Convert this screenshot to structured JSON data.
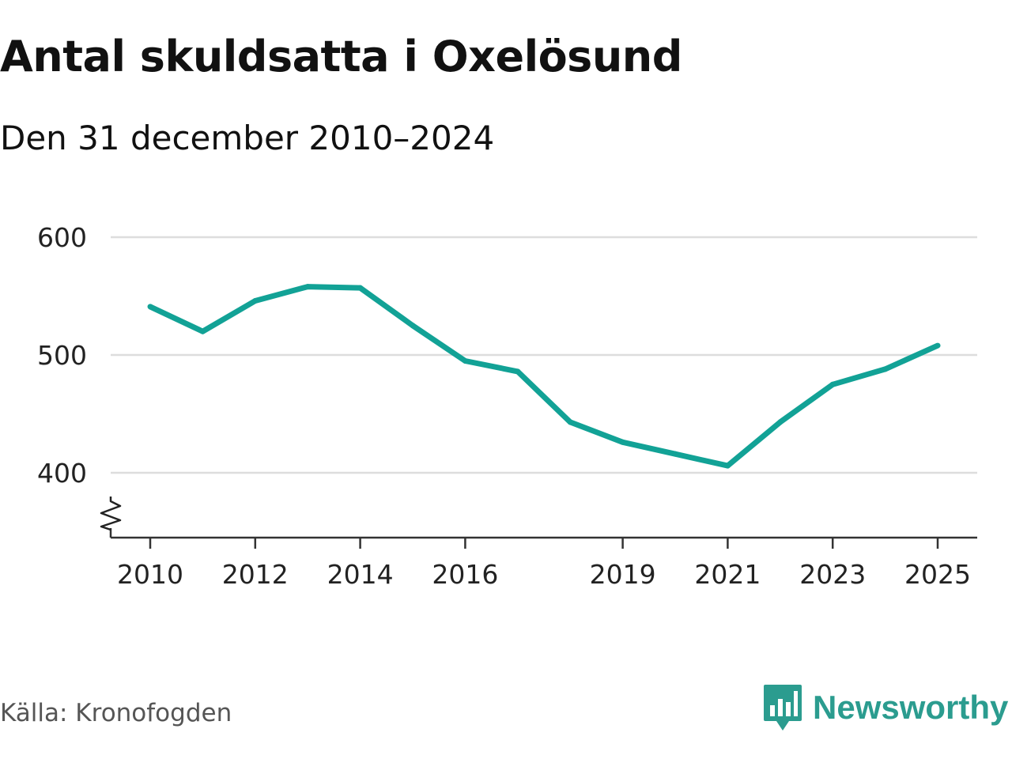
{
  "title": "Antal skuldsatta i Oxelösund",
  "subtitle": "Den 31 december 2010–2024",
  "source": "Källa: Kronofogden",
  "brand": {
    "name": "Newsworthy",
    "icon": "newsworthy-logo-icon",
    "color": "#2b9c8f"
  },
  "chart_data": {
    "type": "line",
    "title": "Antal skuldsatta i Oxelösund",
    "subtitle": "Den 31 december 2010–2024",
    "xlabel": "",
    "ylabel": "",
    "x": [
      2010,
      2011,
      2012,
      2013,
      2014,
      2015,
      2016,
      2017,
      2018,
      2019,
      2020,
      2021,
      2022,
      2023,
      2024,
      2025
    ],
    "series": [
      {
        "name": "Antal skuldsatta",
        "color": "#12a296",
        "values": [
          541,
          520,
          546,
          558,
          557,
          525,
          495,
          486,
          443,
          426,
          416,
          406,
          443,
          475,
          488,
          508
        ]
      }
    ],
    "ylim": [
      345,
      600
    ],
    "yticks": [
      "400",
      "500",
      "600"
    ],
    "xticks": [
      "2010",
      "2012",
      "2014",
      "2016",
      "2019",
      "2021",
      "2023",
      "2025"
    ],
    "grid": true,
    "axis_break": true
  }
}
